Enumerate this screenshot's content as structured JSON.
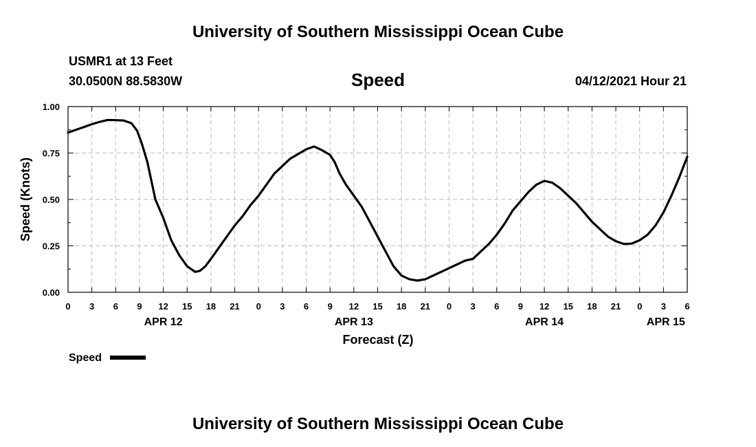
{
  "header": {
    "title": "University of Southern Mississippi Ocean Cube",
    "station": "USMR1 at 13 Feet",
    "coords": "30.0500N  88.5830W",
    "variable": "Speed",
    "datetime": "04/12/2021 Hour 21"
  },
  "footer": {
    "title": "University of Southern Mississippi Ocean Cube"
  },
  "legend": {
    "label": "Speed"
  },
  "colors": {
    "line": "#000000",
    "grid": "#bbbbbb",
    "frame": "#000000"
  },
  "chart_data": {
    "type": "line",
    "title": "Speed",
    "xlabel": "Forecast (Z)",
    "ylabel": "Speed (Knots)",
    "x_unit": "hours since APR 12 00Z",
    "xlim": [
      0,
      78
    ],
    "ylim": [
      0,
      1
    ],
    "yticks": [
      0,
      0.25,
      0.5,
      0.75,
      1.0
    ],
    "ytick_labels": [
      "0.00",
      "0.25",
      "0.50",
      "0.75",
      "1.00"
    ],
    "xticks": [
      0,
      3,
      6,
      9,
      12,
      15,
      18,
      21,
      24,
      27,
      30,
      33,
      36,
      39,
      42,
      45,
      48,
      51,
      54,
      57,
      60,
      63,
      66,
      69,
      72,
      75,
      78
    ],
    "xtick_labels": [
      "0",
      "3",
      "6",
      "9",
      "12",
      "15",
      "18",
      "21",
      "0",
      "3",
      "6",
      "9",
      "12",
      "15",
      "18",
      "21",
      "0",
      "3",
      "6",
      "9",
      "12",
      "15",
      "18",
      "21",
      "0",
      "3",
      "6"
    ],
    "date_labels": [
      {
        "x": 12,
        "label": "APR 12"
      },
      {
        "x": 36,
        "label": "APR 13"
      },
      {
        "x": 60,
        "label": "APR 14"
      },
      {
        "x": 75.3,
        "label": "APR 15"
      }
    ],
    "grid": true,
    "legend": "bottom-left",
    "series": [
      {
        "name": "Speed",
        "x": [
          0,
          1,
          2,
          3,
          4,
          5,
          6,
          7,
          8,
          8.7,
          9.3,
          10,
          11,
          12,
          13,
          14,
          15,
          16,
          16.6,
          17.3,
          18,
          19,
          20,
          21,
          22,
          23,
          24,
          25,
          26,
          27,
          28,
          29,
          30,
          31,
          32,
          33,
          33.6,
          34.2,
          35,
          36,
          37,
          38,
          39,
          40,
          41,
          42,
          43,
          44,
          45,
          46,
          47,
          48,
          49,
          50,
          51,
          52,
          53,
          54,
          55,
          56,
          57,
          58,
          59,
          60,
          61,
          62,
          63,
          64,
          65,
          66,
          67,
          68,
          69,
          70,
          71,
          72,
          73,
          74,
          75,
          76,
          77,
          78
        ],
        "y": [
          0.86,
          0.875,
          0.89,
          0.905,
          0.918,
          0.928,
          0.927,
          0.925,
          0.91,
          0.87,
          0.8,
          0.7,
          0.5,
          0.4,
          0.28,
          0.2,
          0.14,
          0.11,
          0.115,
          0.14,
          0.18,
          0.24,
          0.3,
          0.36,
          0.41,
          0.47,
          0.52,
          0.58,
          0.64,
          0.68,
          0.72,
          0.745,
          0.77,
          0.785,
          0.765,
          0.74,
          0.7,
          0.64,
          0.58,
          0.52,
          0.46,
          0.38,
          0.3,
          0.22,
          0.14,
          0.09,
          0.07,
          0.063,
          0.07,
          0.09,
          0.11,
          0.13,
          0.15,
          0.17,
          0.18,
          0.22,
          0.26,
          0.31,
          0.37,
          0.44,
          0.49,
          0.54,
          0.58,
          0.6,
          0.59,
          0.56,
          0.52,
          0.48,
          0.43,
          0.38,
          0.34,
          0.3,
          0.275,
          0.26,
          0.262,
          0.28,
          0.31,
          0.36,
          0.43,
          0.52,
          0.62,
          0.73
        ]
      }
    ]
  }
}
